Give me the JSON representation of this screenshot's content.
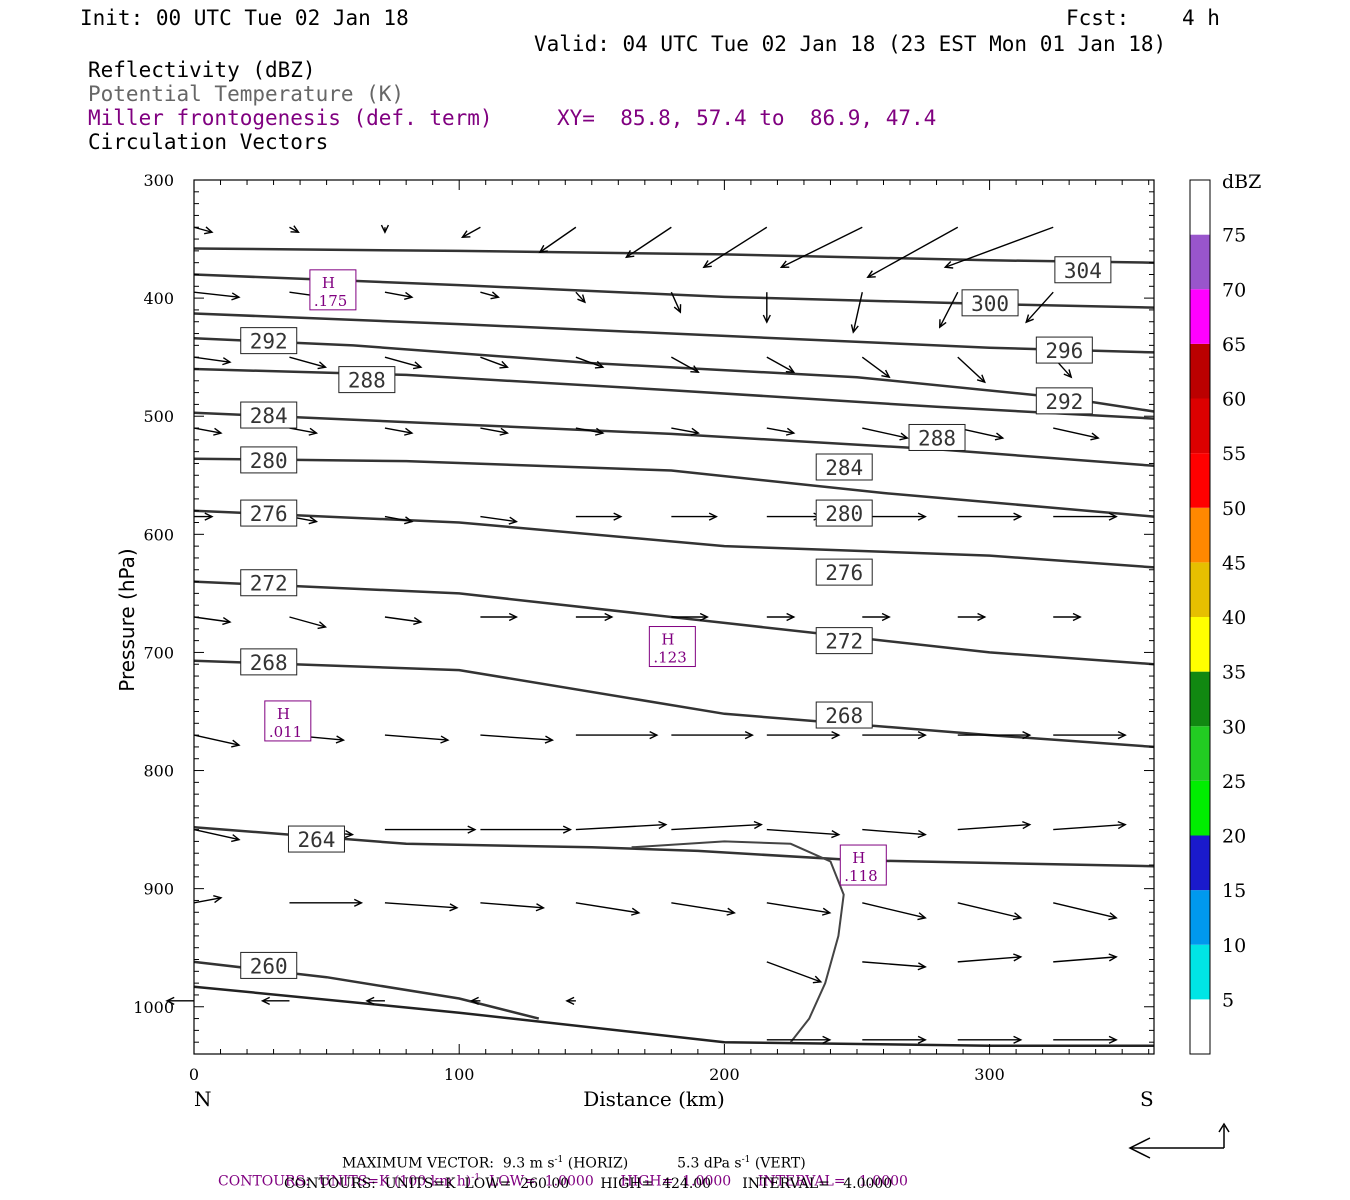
{
  "header": {
    "init": "Init: 00 UTC Tue 02 Jan 18",
    "fcst_label": "Fcst:",
    "fcst_value": "4 h",
    "valid": "Valid: 04 UTC Tue 02 Jan 18 (23 EST Mon 01 Jan 18)"
  },
  "legend": {
    "reflectivity": "Reflectivity (dBZ)",
    "theta": "Potential Temperature (K)",
    "frontogenesis": "Miller frontogenesis (def. term)",
    "xy": "XY=  85.8, 57.4 to  86.9, 47.4",
    "circulation": "Circulation Vectors"
  },
  "colors": {
    "purple": "#800080",
    "contour": "#333333",
    "gray_text": "#666666"
  },
  "chart_data": {
    "type": "line",
    "xlabel": "Distance (km)",
    "ylabel": "Pressure (hPa)",
    "xlim": [
      0,
      362
    ],
    "ylim": [
      1040,
      300
    ],
    "x_ticks": [
      0,
      100,
      200,
      300
    ],
    "y_ticks": [
      300,
      400,
      500,
      600,
      700,
      800,
      900,
      1000
    ],
    "x_end_labels": {
      "left": "N",
      "right": "S"
    },
    "isentropes": [
      {
        "theta": 304,
        "points": [
          [
            0,
            358
          ],
          [
            100,
            360
          ],
          [
            200,
            363
          ],
          [
            300,
            368
          ],
          [
            362,
            370
          ]
        ],
        "labels": [
          [
            325,
            376
          ]
        ]
      },
      {
        "theta": 300,
        "points": [
          [
            0,
            380
          ],
          [
            100,
            389
          ],
          [
            200,
            399
          ],
          [
            300,
            405
          ],
          [
            362,
            408
          ]
        ],
        "labels": [
          [
            290,
            404
          ]
        ]
      },
      {
        "theta": 296,
        "points": [
          [
            0,
            413
          ],
          [
            100,
            422
          ],
          [
            200,
            432
          ],
          [
            300,
            442
          ],
          [
            362,
            446
          ]
        ],
        "labels": [
          [
            318,
            444
          ]
        ]
      },
      {
        "theta": 292,
        "points": [
          [
            0,
            434
          ],
          [
            60,
            440
          ],
          [
            150,
            455
          ],
          [
            250,
            467
          ],
          [
            330,
            485
          ],
          [
            362,
            496
          ]
        ],
        "labels": [
          [
            18,
            436
          ],
          [
            318,
            487
          ]
        ]
      },
      {
        "theta": 288,
        "points": [
          [
            0,
            460
          ],
          [
            80,
            465
          ],
          [
            180,
            478
          ],
          [
            280,
            492
          ],
          [
            362,
            502
          ]
        ],
        "labels": [
          [
            55,
            469
          ],
          [
            270,
            518
          ]
        ]
      },
      {
        "theta": 284,
        "points": [
          [
            0,
            497
          ],
          [
            80,
            505
          ],
          [
            180,
            515
          ],
          [
            280,
            528
          ],
          [
            362,
            542
          ]
        ],
        "labels": [
          [
            18,
            499
          ],
          [
            235,
            543
          ]
        ]
      },
      {
        "theta": 280,
        "points": [
          [
            0,
            536
          ],
          [
            80,
            538
          ],
          [
            180,
            546
          ],
          [
            260,
            565
          ],
          [
            362,
            585
          ]
        ],
        "labels": [
          [
            18,
            537
          ],
          [
            235,
            582
          ]
        ]
      },
      {
        "theta": 276,
        "points": [
          [
            0,
            580
          ],
          [
            100,
            590
          ],
          [
            200,
            610
          ],
          [
            300,
            618
          ],
          [
            362,
            628
          ]
        ],
        "labels": [
          [
            18,
            582
          ],
          [
            235,
            632
          ]
        ]
      },
      {
        "theta": 272,
        "points": [
          [
            0,
            640
          ],
          [
            100,
            650
          ],
          [
            200,
            675
          ],
          [
            300,
            700
          ],
          [
            362,
            710
          ]
        ],
        "labels": [
          [
            18,
            641
          ],
          [
            235,
            690
          ]
        ]
      },
      {
        "theta": 268,
        "points": [
          [
            0,
            707
          ],
          [
            100,
            715
          ],
          [
            200,
            752
          ],
          [
            300,
            770
          ],
          [
            362,
            780
          ]
        ],
        "labels": [
          [
            18,
            708
          ],
          [
            235,
            753
          ]
        ]
      },
      {
        "theta": 264,
        "points": [
          [
            0,
            848
          ],
          [
            80,
            862
          ],
          [
            150,
            865
          ],
          [
            190,
            868
          ],
          [
            250,
            876
          ],
          [
            362,
            881
          ]
        ],
        "labels": [
          [
            36,
            858
          ]
        ]
      },
      {
        "theta": 260,
        "points": [
          [
            0,
            962
          ],
          [
            50,
            975
          ],
          [
            100,
            993
          ],
          [
            130,
            1010
          ]
        ],
        "labels": [
          [
            18,
            965
          ]
        ]
      }
    ],
    "surface": {
      "points": [
        [
          0,
          983
        ],
        [
          100,
          1005
        ],
        [
          200,
          1030
        ],
        [
          300,
          1033
        ],
        [
          362,
          1033
        ]
      ]
    },
    "reflectivity_contour": {
      "points": [
        [
          165,
          865
        ],
        [
          200,
          860
        ],
        [
          225,
          862
        ],
        [
          240,
          877
        ],
        [
          245,
          905
        ],
        [
          243,
          940
        ],
        [
          238,
          980
        ],
        [
          232,
          1010
        ],
        [
          225,
          1030
        ]
      ]
    },
    "frontogenesis_maxima": [
      {
        "x": 52,
        "p": 393,
        "label": "H",
        "value": ".175"
      },
      {
        "x": 180,
        "p": 695,
        "label": "H",
        "value": ".123"
      },
      {
        "x": 35,
        "p": 758,
        "label": "H",
        "value": ".011"
      },
      {
        "x": 252,
        "p": 880,
        "label": "H",
        "value": ".118"
      }
    ],
    "vectors": [
      {
        "p": 340,
        "x0": 0,
        "items": [
          [
            2,
            1
          ],
          [
            1,
            1
          ],
          [
            0,
            1
          ],
          [
            -2,
            2
          ],
          [
            -4,
            5
          ],
          [
            -5,
            6
          ],
          [
            -7,
            8
          ],
          [
            -9,
            8
          ],
          [
            -10,
            10
          ],
          [
            -12,
            8
          ]
        ]
      },
      {
        "p": 395,
        "x0": 0,
        "items": [
          [
            5,
            1
          ],
          [
            4,
            1
          ],
          [
            3,
            1
          ],
          [
            2,
            1
          ],
          [
            1,
            2
          ],
          [
            1,
            4
          ],
          [
            0,
            6
          ],
          [
            -1,
            8
          ],
          [
            -2,
            7
          ],
          [
            -3,
            6
          ]
        ]
      },
      {
        "p": 450,
        "x0": 0,
        "items": [
          [
            4,
            1
          ],
          [
            4,
            2
          ],
          [
            4,
            2
          ],
          [
            3,
            2
          ],
          [
            3,
            2
          ],
          [
            3,
            3
          ],
          [
            3,
            3
          ],
          [
            3,
            4
          ],
          [
            3,
            5
          ],
          [
            2,
            4
          ]
        ]
      },
      {
        "p": 510,
        "x0": 0,
        "items": [
          [
            3,
            1
          ],
          [
            3,
            1
          ],
          [
            3,
            1
          ],
          [
            3,
            1
          ],
          [
            3,
            1
          ],
          [
            3,
            1
          ],
          [
            3,
            1
          ],
          [
            5,
            2
          ],
          [
            5,
            2
          ],
          [
            5,
            2
          ]
        ]
      },
      {
        "p": 585,
        "x0": 0,
        "items": [
          [
            2,
            0
          ],
          [
            3,
            1
          ],
          [
            3,
            1
          ],
          [
            4,
            1
          ],
          [
            5,
            0
          ],
          [
            5,
            0
          ],
          [
            6,
            0
          ],
          [
            7,
            0
          ],
          [
            7,
            0
          ],
          [
            7,
            0
          ]
        ]
      },
      {
        "p": 670,
        "x0": 0,
        "items": [
          [
            4,
            1
          ],
          [
            4,
            2
          ],
          [
            4,
            1
          ],
          [
            4,
            0
          ],
          [
            4,
            0
          ],
          [
            4,
            0
          ],
          [
            3,
            0
          ],
          [
            3,
            0
          ],
          [
            3,
            0
          ],
          [
            3,
            0
          ]
        ]
      },
      {
        "p": 770,
        "x0": 0,
        "items": [
          [
            5,
            2
          ],
          [
            6,
            1
          ],
          [
            7,
            1
          ],
          [
            8,
            1
          ],
          [
            9,
            0
          ],
          [
            9,
            0
          ],
          [
            8,
            0
          ],
          [
            7,
            0
          ],
          [
            8,
            0
          ],
          [
            8,
            0
          ]
        ]
      },
      {
        "p": 850,
        "x0": 0,
        "items": [
          [
            5,
            2
          ],
          [
            7,
            1
          ],
          [
            10,
            0
          ],
          [
            10,
            0
          ],
          [
            10,
            -1
          ],
          [
            10,
            -1
          ],
          [
            8,
            1
          ],
          [
            7,
            1
          ],
          [
            8,
            -1
          ],
          [
            8,
            -1
          ]
        ]
      },
      {
        "p": 912,
        "x0": 0,
        "items": [
          [
            3,
            -1
          ],
          [
            8,
            0
          ],
          [
            8,
            1
          ],
          [
            7,
            1
          ],
          [
            7,
            2
          ],
          [
            7,
            2
          ],
          [
            7,
            2
          ],
          [
            7,
            3
          ],
          [
            7,
            3
          ],
          [
            7,
            3
          ]
        ]
      },
      {
        "p": 962,
        "x0": 0,
        "items": [
          [
            0,
            0
          ],
          [
            0,
            0
          ],
          [
            0,
            0
          ],
          [
            0,
            0
          ],
          [
            0,
            0
          ],
          [
            0,
            0
          ],
          [
            6,
            4
          ],
          [
            7,
            1
          ],
          [
            7,
            -1
          ],
          [
            7,
            -1
          ]
        ]
      },
      {
        "p": 995,
        "x0": 0,
        "items": [
          [
            -3,
            0
          ],
          [
            -3,
            0
          ],
          [
            -2,
            0
          ],
          [
            -1,
            0
          ],
          [
            -1,
            0
          ],
          [
            0,
            0
          ],
          [
            0,
            0
          ],
          [
            0,
            0
          ],
          [
            0,
            0
          ],
          [
            0,
            0
          ]
        ]
      },
      {
        "p": 1028,
        "x0": 0,
        "items": [
          [
            0,
            0
          ],
          [
            0,
            0
          ],
          [
            0,
            0
          ],
          [
            0,
            0
          ],
          [
            0,
            0
          ],
          [
            0,
            0
          ],
          [
            7,
            0
          ],
          [
            7,
            0
          ],
          [
            7,
            0
          ],
          [
            7,
            0
          ]
        ]
      }
    ]
  },
  "colorbar": {
    "unit": "dBZ",
    "levels": [
      5,
      10,
      15,
      20,
      25,
      30,
      35,
      40,
      45,
      50,
      55,
      60,
      65,
      70,
      75
    ],
    "colors": [
      "#ffffff",
      "#00e5e5",
      "#0099ee",
      "#1a1acc",
      "#00ee00",
      "#22cc22",
      "#118811",
      "#ffff00",
      "#e6bf00",
      "#ff8800",
      "#ff0000",
      "#dd0000",
      "#bb0000",
      "#ff00ff",
      "#9955cc",
      "#ffffff"
    ]
  },
  "footer": {
    "max_vector": "MAXIMUM VECTOR:  9.3 m s",
    "horiz": "(HORIZ)",
    "vert_value": "5.3 dPa s",
    "vert": "(VERT)",
    "neg1": "-1",
    "contours1_a": "CONTOURS:  UNITS=K (100 km h)",
    "contours1_b": "LOW=  1.0000      HIGH=  1.0000      INTERVAL=   1.0000",
    "contours2": "CONTOURS:  UNITS=K  LOW=  260.00       HIGH=  424.00       INTERVAL=   4.0000"
  }
}
